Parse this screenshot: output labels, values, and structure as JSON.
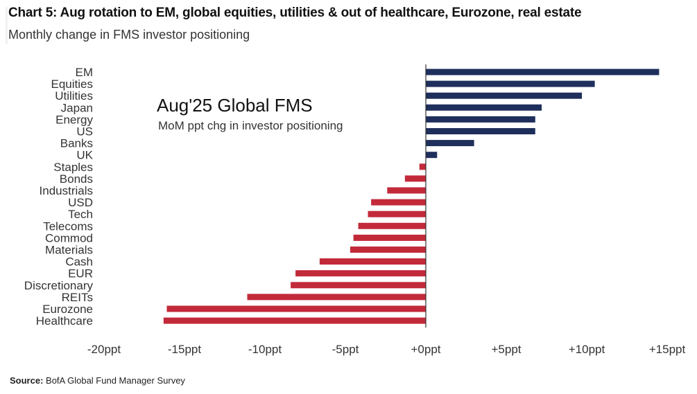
{
  "header": {
    "title": "Chart 5: Aug rotation to EM, global equities, utilities & out of healthcare, Eurozone, real estate",
    "subtitle": "Monthly change in FMS investor positioning"
  },
  "inset": {
    "title": "Aug'25 Global FMS",
    "subtitle": "MoM ppt chg in investor positioning"
  },
  "footer": {
    "source_label": "Source:",
    "source_text": "BofA Global Fund Manager Survey"
  },
  "colors": {
    "positive": "#1f2f5c",
    "negative": "#c22a3a",
    "axis": "#333333"
  },
  "chart_data": {
    "type": "bar",
    "orientation": "horizontal",
    "categories": [
      "EM",
      "Equities",
      "Utilities",
      "Japan",
      "Energy",
      "US",
      "Banks",
      "UK",
      "Staples",
      "Bonds",
      "Industrials",
      "USD",
      "Tech",
      "Telecoms",
      "Commod",
      "Materials",
      "Cash",
      "EUR",
      "Discretionary",
      "REITs",
      "Eurozone",
      "Healthcare"
    ],
    "values": [
      14.5,
      10.5,
      9.7,
      7.2,
      6.8,
      6.8,
      3.0,
      0.7,
      -0.4,
      -1.3,
      -2.4,
      -3.4,
      -3.6,
      -4.2,
      -4.5,
      -4.7,
      -6.6,
      -8.1,
      -8.4,
      -11.1,
      -16.1,
      -16.3
    ],
    "xlim": [
      -20,
      15
    ],
    "xticks": [
      -20,
      -15,
      -10,
      -5,
      0,
      5,
      10,
      15
    ],
    "xtick_labels": [
      "-20ppt",
      "-15ppt",
      "-10ppt",
      "-5ppt",
      "+0ppt",
      "+5ppt",
      "+10ppt",
      "+15ppt"
    ],
    "title": "Aug'25 Global FMS",
    "xlabel": "",
    "ylabel": "",
    "grid": false,
    "legend": "none"
  }
}
